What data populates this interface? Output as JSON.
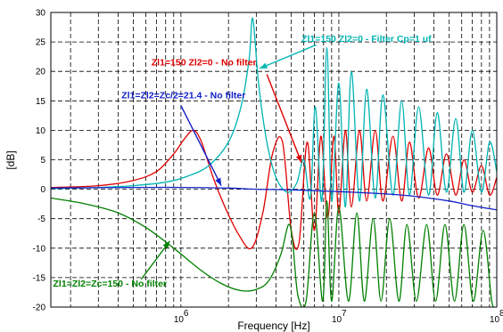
{
  "chart_data": {
    "type": "line",
    "title": "",
    "xlabel": "Frequency [Hz]",
    "ylabel": "[dB]",
    "xscale": "log",
    "xlim": [
      150000,
      100000000
    ],
    "ylim": [
      -20,
      30
    ],
    "grid": true,
    "x_ticks": [
      {
        "value": 1000000,
        "base": "10",
        "exp": "6"
      },
      {
        "value": 10000000,
        "base": "10",
        "exp": "7"
      },
      {
        "value": 100000000,
        "base": "10",
        "exp": "8"
      }
    ],
    "y_ticks": [
      -20,
      -15,
      -10,
      -5,
      0,
      5,
      10,
      15,
      20,
      25,
      30
    ],
    "series": [
      {
        "key": "red",
        "color": "#e00000",
        "x": [
          150000,
          300000,
          500000,
          700000,
          900000,
          1050000,
          1200000,
          1350000,
          1600000,
          1900000,
          2300000,
          2800000,
          3300000,
          3800000,
          4400000,
          5000000,
          5600000,
          6300000,
          7000000,
          7700000,
          8500000,
          9300000,
          10000000,
          11000000,
          12000000,
          13500000,
          15000000,
          17000000,
          19000000,
          22000000,
          25000000,
          28000000,
          32000000,
          37000000,
          42000000,
          48000000,
          55000000,
          62000000,
          70000000,
          80000000,
          90000000,
          100000000
        ],
        "y": [
          0.3,
          0.6,
          1.5,
          3,
          6,
          8.5,
          10,
          8,
          2,
          -3,
          -7.5,
          -10,
          -4,
          6,
          8,
          -7,
          -9,
          8,
          -7,
          9,
          -5,
          9,
          -4,
          10,
          -3,
          10,
          -2,
          10,
          -2,
          9,
          -2,
          8,
          -1.5,
          7,
          -1,
          6,
          -1,
          5,
          -0.5,
          4,
          -1,
          2
        ]
      },
      {
        "key": "cyan",
        "color": "#00b4b4",
        "x": [
          150000,
          300000,
          500000,
          800000,
          1100000,
          1500000,
          2000000,
          2400000,
          2700000,
          2850000,
          3100000,
          3500000,
          4000000,
          4700000,
          5400000,
          6000000,
          6600000,
          7100000,
          7800000,
          8400000,
          9000000,
          10000000,
          11000000,
          12000000,
          13500000,
          15000000,
          17000000,
          19000000,
          22000000,
          25000000,
          28000000,
          32000000,
          37000000,
          42000000,
          48000000,
          55000000,
          62000000,
          70000000,
          80000000,
          90000000,
          100000000
        ],
        "y": [
          0.1,
          0.3,
          0.6,
          1.2,
          2.2,
          4,
          8,
          14,
          22,
          29,
          18,
          8,
          2,
          -0.5,
          1,
          5,
          -1.5,
          14,
          -2,
          24,
          -2,
          18,
          -3,
          20,
          -2,
          17,
          -1.5,
          16,
          -1,
          15,
          -1,
          14,
          -1,
          13,
          -0.5,
          12,
          -0.5,
          10,
          -0.5,
          8,
          3
        ]
      },
      {
        "key": "blue",
        "color": "#1020c8",
        "x": [
          150000,
          500000,
          1000000,
          2000000,
          3000000,
          5000000,
          8000000,
          12000000,
          20000000,
          30000000,
          50000000,
          70000000,
          100000000
        ],
        "y": [
          0.2,
          0.3,
          0.3,
          0.2,
          0,
          -0.1,
          -0.3,
          -0.5,
          -0.8,
          -1.2,
          -2,
          -2.8,
          -3.5
        ]
      },
      {
        "key": "green",
        "color": "#008000",
        "x": [
          150000,
          250000,
          400000,
          600000,
          900000,
          1300000,
          1800000,
          2400000,
          3000000,
          3600000,
          4300000,
          4800000,
          5100000,
          5500000,
          6200000,
          7000000,
          7900000,
          8400000,
          9000000,
          10000000,
          11500000,
          13000000,
          14500000,
          16500000,
          18500000,
          21000000,
          24000000,
          27000000,
          31000000,
          36000000,
          41000000,
          47000000,
          54000000,
          62000000,
          71000000,
          82000000,
          93000000,
          100000000
        ],
        "y": [
          -1.5,
          -2.5,
          -4,
          -6.5,
          -10,
          -13.5,
          -16,
          -17.2,
          -17,
          -15.5,
          -11,
          -6,
          -9,
          -18,
          -19,
          -4,
          -19,
          -2,
          -19,
          -3,
          -19,
          -4,
          -19,
          -5,
          -19,
          -5,
          -19,
          -6,
          -19,
          -6,
          -19,
          -6,
          -19,
          -6,
          -19,
          -7,
          -19,
          -20
        ]
      }
    ],
    "annotations": [
      {
        "key": "cyan",
        "text": "Zl1=150 Zl2=0 - Filter Cp=1 uf",
        "color": "#00b4b4",
        "x": 5800000,
        "y": 25,
        "anchor": "start",
        "arrow_to_x": 3150000,
        "arrow_to_y": 20.5,
        "arrow_from_x": 7200000,
        "arrow_from_y": 24.5
      },
      {
        "key": "red",
        "text": "Zl1=150 Zl2=0 - No filter",
        "color": "#e00000",
        "x": 650000,
        "y": 21,
        "anchor": "start",
        "arrow_to_x": 5800000,
        "arrow_to_y": 4.5,
        "arrow_from_x": 3500000,
        "arrow_from_y": 19.5
      },
      {
        "key": "blue",
        "text": "Zl1=Zl2=Zc/2=21.4 - No filter",
        "color": "#1020c8",
        "x": 420000,
        "y": 15.4,
        "anchor": "start",
        "arrow_to_x": 1800000,
        "arrow_to_y": 0.6,
        "arrow_from_x": 1000000,
        "arrow_from_y": 14.2
      },
      {
        "key": "green",
        "text": "Zl1=Zl2=Zc=150 - No filter",
        "color": "#008000",
        "x": 155000,
        "y": -16.5,
        "anchor": "start",
        "arrow_to_x": 850000,
        "arrow_to_y": -8.8,
        "arrow_from_x": 560000,
        "arrow_from_y": -15.3
      }
    ]
  }
}
